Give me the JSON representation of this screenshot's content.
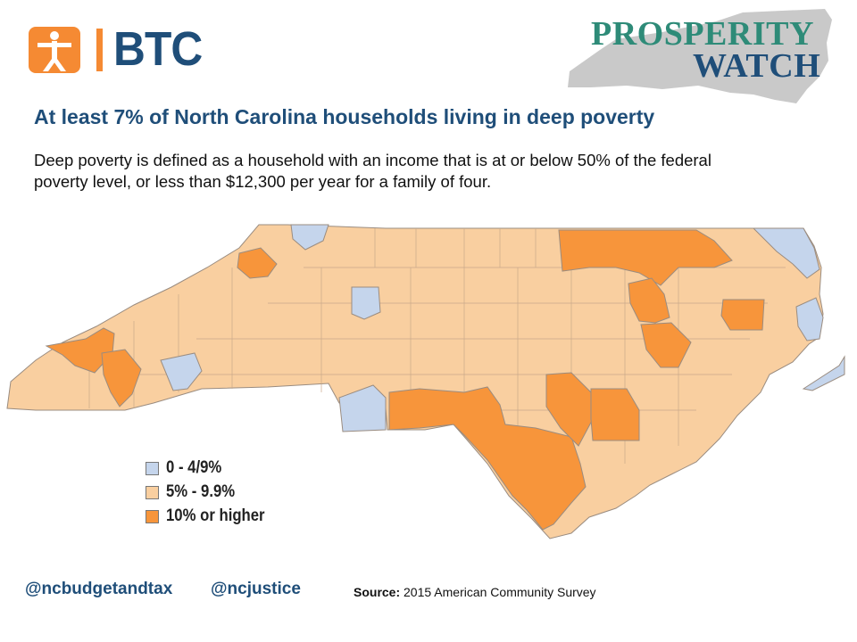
{
  "header": {
    "logo_left": {
      "text": "BTC"
    },
    "logo_right": {
      "line1": "PROSPERITY",
      "line2": "WATCH"
    }
  },
  "title": "At least 7% of North Carolina households living in deep poverty",
  "subtitle": "Deep poverty is defined as a household with an income that is at or below 50% of the federal poverty level, or less than $12,300 per year for a family of four.",
  "legend": [
    {
      "label": "0 - 4/9%",
      "color": "#c5d5ec"
    },
    {
      "label": "5% - 9.9%",
      "color": "#f9cfa0"
    },
    {
      "label": "10% or higher",
      "color": "#f7953b"
    }
  ],
  "footer": {
    "handle1": "@ncbudgetandtax",
    "handle2": "@ncjustice",
    "source_label": "Source:",
    "source_text": "2015 American Community Survey"
  },
  "colors": {
    "brand_blue": "#1f4e79",
    "brand_orange": "#f58a33",
    "pw_green": "#2e8b78"
  }
}
